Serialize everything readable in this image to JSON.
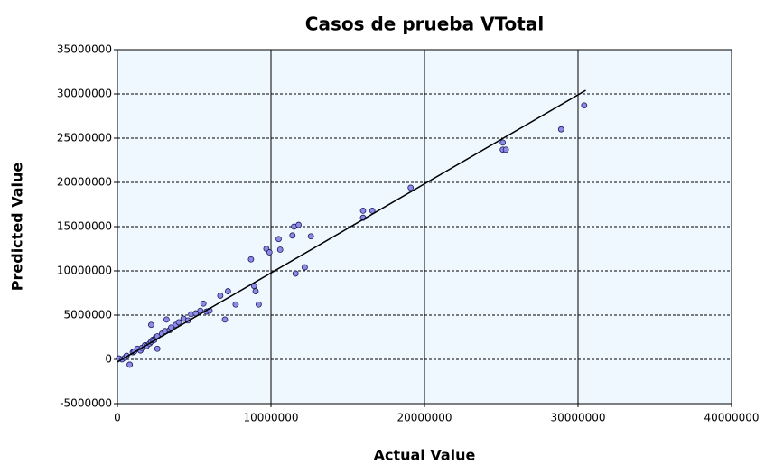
{
  "chart_data": {
    "type": "scatter",
    "title": "Casos de prueba VTotal",
    "xlabel": "Actual Value",
    "ylabel": "Predicted Value",
    "xlim": [
      0,
      40000000
    ],
    "ylim": [
      -5000000,
      35000000
    ],
    "xticks": [
      0,
      10000000,
      20000000,
      30000000,
      40000000
    ],
    "yticks": [
      -5000000,
      0,
      5000000,
      10000000,
      15000000,
      20000000,
      25000000,
      30000000,
      35000000
    ],
    "grid": true,
    "background": "#f0f8ff",
    "series": [
      {
        "type": "scatter",
        "color": "#8c8ce6",
        "x": [
          100000,
          300000,
          500000,
          600000,
          800000,
          800000,
          1000000,
          1100000,
          1300000,
          1500000,
          1600000,
          1800000,
          1900000,
          2100000,
          2200000,
          2300000,
          2400000,
          2600000,
          2200000,
          2500000,
          2600000,
          2900000,
          3100000,
          3200000,
          3400000,
          3500000,
          3800000,
          4000000,
          4300000,
          4600000,
          4800000,
          5100000,
          5400000,
          5600000,
          5800000,
          6000000,
          6700000,
          7000000,
          7200000,
          7700000,
          8700000,
          8900000,
          9000000,
          9200000,
          9700000,
          9900000,
          10500000,
          10600000,
          11400000,
          11500000,
          11600000,
          11800000,
          12200000,
          12600000,
          16000000,
          16000000,
          16600000,
          19100000,
          25100000,
          25100000,
          25300000,
          28900000,
          30400000
        ],
        "values": [
          100000,
          0,
          200000,
          400000,
          -600000,
          -600000,
          800000,
          900000,
          1200000,
          1000000,
          1300000,
          1600000,
          1500000,
          1800000,
          2000000,
          2200000,
          2200000,
          1200000,
          3900000,
          2500000,
          2600000,
          2900000,
          3200000,
          4500000,
          3300000,
          3600000,
          3900000,
          4200000,
          4600000,
          4400000,
          5100000,
          5200000,
          5500000,
          6300000,
          5400000,
          5500000,
          7200000,
          4500000,
          7700000,
          6200000,
          11300000,
          8300000,
          7700000,
          6200000,
          12500000,
          12100000,
          13600000,
          12400000,
          14000000,
          15000000,
          9700000,
          15200000,
          10400000,
          13900000,
          16000000,
          16800000,
          16800000,
          19400000,
          24500000,
          23700000,
          23700000,
          26000000,
          28700000
        ]
      },
      {
        "type": "line",
        "color": "#000000",
        "x": [
          0,
          30500000
        ],
        "values": [
          -300000,
          30400000
        ]
      }
    ]
  }
}
